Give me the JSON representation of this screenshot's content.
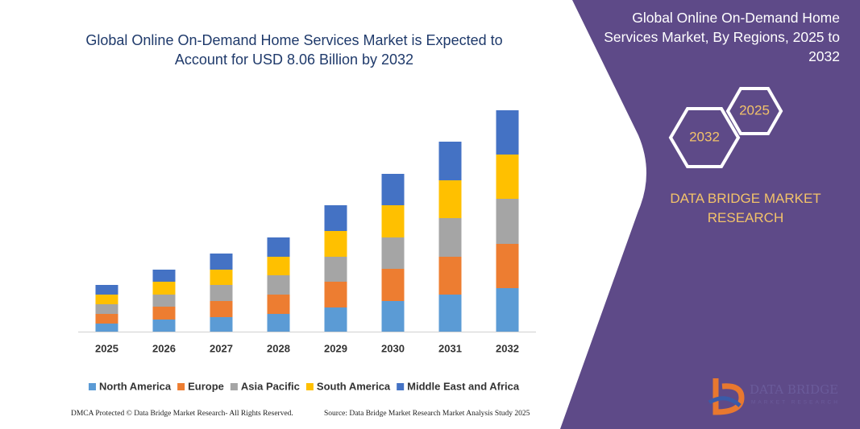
{
  "chart_data": {
    "type": "bar",
    "stacked": true,
    "title": "Global Online On-Demand Home Services Market is Expected to Account for USD 8.06 Billion by 2032",
    "categories": [
      "2025",
      "2026",
      "2027",
      "2028",
      "2029",
      "2030",
      "2031",
      "2032"
    ],
    "series": [
      {
        "name": "North America",
        "color": "#5b9bd5",
        "values": [
          10,
          15,
          18,
          22,
          30,
          38,
          46,
          54
        ]
      },
      {
        "name": "Europe",
        "color": "#ed7d31",
        "values": [
          12,
          16,
          20,
          24,
          32,
          40,
          47,
          55
        ]
      },
      {
        "name": "Asia Pacific",
        "color": "#a5a5a5",
        "values": [
          12,
          15,
          20,
          24,
          31,
          39,
          48,
          56
        ]
      },
      {
        "name": "South America",
        "color": "#ffc000",
        "values": [
          12,
          16,
          19,
          23,
          32,
          40,
          47,
          55
        ]
      },
      {
        "name": "Middle East and Africa",
        "color": "#4472c4",
        "values": [
          12,
          15,
          20,
          24,
          32,
          39,
          48,
          55
        ]
      }
    ],
    "ylim": [
      0,
      290
    ]
  },
  "panel": {
    "title": "Global Online On-Demand Home Services Market, By Regions, 2025 to 2032",
    "hex_small": "2025",
    "hex_large": "2032",
    "brand": "DATA BRIDGE MARKET RESEARCH"
  },
  "logo": {
    "name": "DATA BRIDGE",
    "tagline": "MARKET RESEARCH"
  },
  "footer": {
    "left": "DMCA Protected © Data Bridge Market Research- All Rights Reserved.",
    "right": "Source: Data Bridge Market Research Market Analysis Study 2025"
  }
}
